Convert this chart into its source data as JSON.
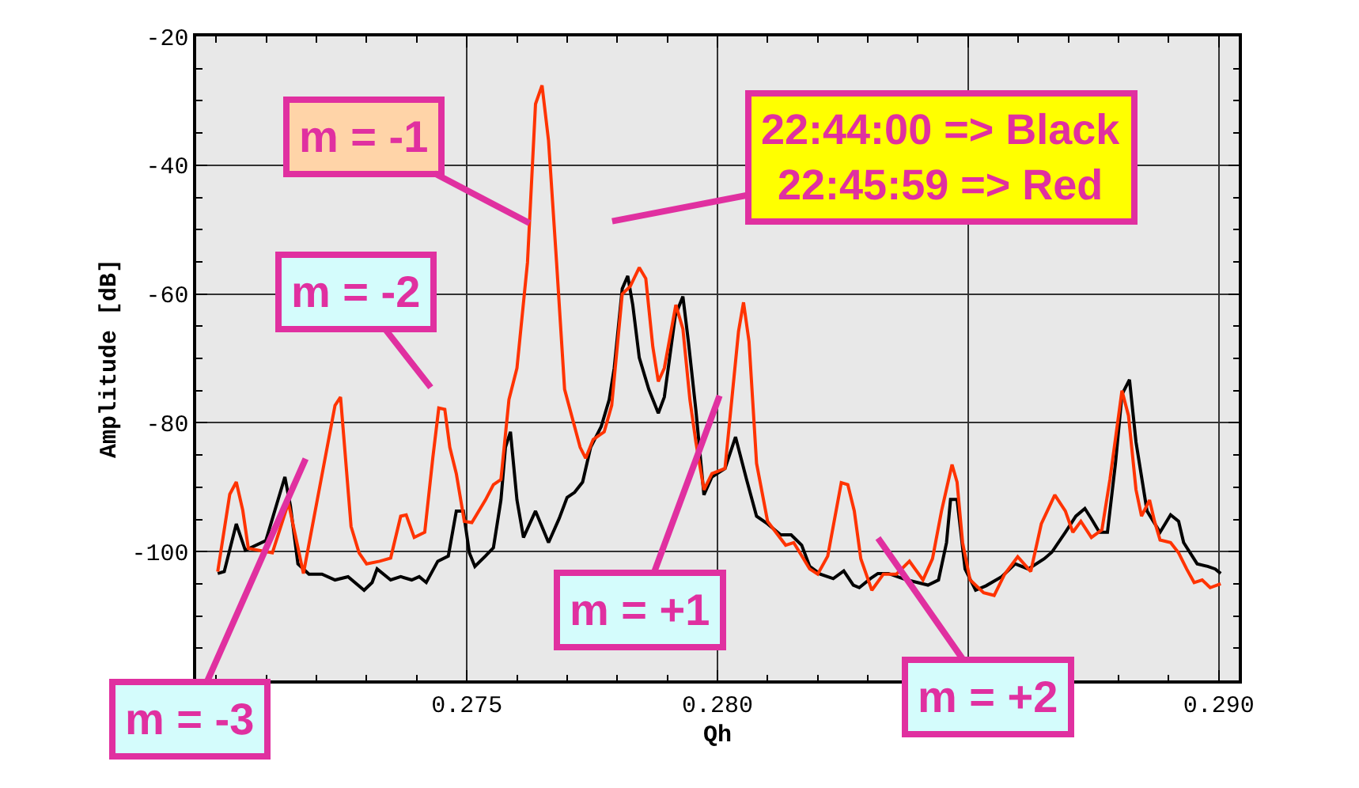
{
  "chart_data": {
    "type": "line",
    "xlabel": "Qh",
    "ylabel": "Amplitude [dB]",
    "xlim": [
      0.2696,
      0.2904
    ],
    "ylim": [
      -120,
      -20
    ],
    "xticks": [
      {
        "value": 0.275,
        "label": "0.275"
      },
      {
        "value": 0.28,
        "label": "0.280"
      },
      {
        "value": 0.285,
        "label": null
      },
      {
        "value": 0.29,
        "label": "0.290"
      }
    ],
    "yticks": [
      -20,
      -40,
      -60,
      -80,
      -100
    ],
    "grid": true,
    "marker": "none",
    "line_style": "solid",
    "series": [
      {
        "color": "#000000",
        "x": [
          0.27003,
          0.27016,
          0.2704,
          0.27058,
          0.27099,
          0.27137,
          0.27148,
          0.27163,
          0.27185,
          0.27211,
          0.27237,
          0.27263,
          0.27295,
          0.27311,
          0.27321,
          0.27348,
          0.27368,
          0.2739,
          0.27405,
          0.27419,
          0.27442,
          0.27463,
          0.27479,
          0.27493,
          0.27505,
          0.27516,
          0.27537,
          0.27553,
          0.27568,
          0.27577,
          0.27587,
          0.276,
          0.27613,
          0.27637,
          0.27663,
          0.27684,
          0.277,
          0.27715,
          0.27731,
          0.27747,
          0.27768,
          0.27784,
          0.27794,
          0.2781,
          0.27821,
          0.27831,
          0.27844,
          0.27863,
          0.27882,
          0.27894,
          0.27916,
          0.27931,
          0.27942,
          0.27957,
          0.27973,
          0.27989,
          0.28015,
          0.28036,
          0.28058,
          0.28078,
          0.281,
          0.28126,
          0.28147,
          0.28168,
          0.28184,
          0.28205,
          0.28231,
          0.28252,
          0.28271,
          0.28283,
          0.28305,
          0.2832,
          0.28341,
          0.28378,
          0.28399,
          0.2842,
          0.28441,
          0.28457,
          0.28465,
          0.28478,
          0.28494,
          0.28515,
          0.28536,
          0.28567,
          0.28594,
          0.2862,
          0.28652,
          0.28667,
          0.28694,
          0.28715,
          0.28733,
          0.28746,
          0.28762,
          0.28778,
          0.28794,
          0.28807,
          0.28822,
          0.28835,
          0.28857,
          0.28883,
          0.28904,
          0.2892,
          0.2893,
          0.28957,
          0.28978,
          0.28993,
          0.29004
        ],
        "values": [
          -103.4,
          -103.1,
          -95.7,
          -99.8,
          -98.3,
          -88.4,
          -92.9,
          -101.9,
          -103.5,
          -103.5,
          -104.4,
          -103.9,
          -106.0,
          -104.8,
          -102.7,
          -104.4,
          -103.9,
          -104.4,
          -103.9,
          -104.8,
          -101.5,
          -100.7,
          -93.7,
          -93.7,
          -100.2,
          -102.3,
          -100.7,
          -99.4,
          -92.0,
          -83.8,
          -81.4,
          -92.0,
          -97.8,
          -93.7,
          -98.6,
          -94.9,
          -91.6,
          -90.8,
          -89.2,
          -83.8,
          -80.6,
          -76.4,
          -71.5,
          -59.2,
          -57.2,
          -61.7,
          -69.9,
          -74.8,
          -78.5,
          -76.0,
          -63.3,
          -60.4,
          -67.4,
          -78.1,
          -91.2,
          -88.4,
          -87.1,
          -82.2,
          -88.8,
          -94.5,
          -95.7,
          -97.4,
          -97.4,
          -99.0,
          -102.3,
          -103.5,
          -104.2,
          -103.0,
          -105.2,
          -105.6,
          -104.2,
          -103.4,
          -103.4,
          -104.4,
          -104.8,
          -105.2,
          -104.4,
          -98.6,
          -91.9,
          -91.9,
          -102.7,
          -106.0,
          -105.3,
          -103.9,
          -101.9,
          -102.7,
          -101.1,
          -100.1,
          -97.0,
          -94.5,
          -93.3,
          -94.9,
          -97.0,
          -97.0,
          -86.3,
          -75.6,
          -73.3,
          -83.0,
          -93.7,
          -97.0,
          -94.3,
          -95.3,
          -98.6,
          -101.9,
          -102.3,
          -102.7,
          -103.4
        ]
      },
      {
        "color": "#ff3300",
        "x": [
          0.27003,
          0.27027,
          0.2704,
          0.27053,
          0.27064,
          0.27112,
          0.27144,
          0.27174,
          0.27237,
          0.27248,
          0.27269,
          0.27285,
          0.273,
          0.27326,
          0.27348,
          0.27368,
          0.27379,
          0.27395,
          0.27416,
          0.27432,
          0.27444,
          0.27456,
          0.27466,
          0.27479,
          0.27495,
          0.2751,
          0.27537,
          0.27553,
          0.27568,
          0.27584,
          0.276,
          0.27621,
          0.27637,
          0.2765,
          0.27663,
          0.27679,
          0.27695,
          0.27726,
          0.27737,
          0.27752,
          0.27774,
          0.27789,
          0.2781,
          0.27826,
          0.27844,
          0.27857,
          0.27871,
          0.27882,
          0.27894,
          0.27917,
          0.27931,
          0.27945,
          0.27957,
          0.27973,
          0.27989,
          0.28015,
          0.28042,
          0.28052,
          0.28063,
          0.28078,
          0.281,
          0.28136,
          0.28152,
          0.28184,
          0.282,
          0.2822,
          0.28247,
          0.2826,
          0.28273,
          0.28286,
          0.28308,
          0.28331,
          0.28357,
          0.28383,
          0.2841,
          0.28429,
          0.28447,
          0.28468,
          0.28478,
          0.28489,
          0.28504,
          0.28531,
          0.28552,
          0.28573,
          0.28599,
          0.28625,
          0.28646,
          0.28673,
          0.28694,
          0.28709,
          0.28725,
          0.28746,
          0.28767,
          0.28783,
          0.28807,
          0.2882,
          0.28835,
          0.28846,
          0.28862,
          0.28872,
          0.28883,
          0.28904,
          0.2892,
          0.28936,
          0.28951,
          0.28967,
          0.28983,
          0.29004
        ],
        "values": [
          -103.1,
          -91.1,
          -89.2,
          -93.6,
          -99.5,
          -100.2,
          -92.4,
          -103.4,
          -77.3,
          -76.0,
          -96.1,
          -100.2,
          -101.9,
          -101.5,
          -101.0,
          -94.5,
          -94.3,
          -97.8,
          -97.0,
          -85.5,
          -77.7,
          -77.9,
          -83.8,
          -87.9,
          -95.3,
          -95.5,
          -92.0,
          -89.6,
          -88.8,
          -76.4,
          -71.5,
          -55.1,
          -30.5,
          -27.6,
          -36.2,
          -55.1,
          -74.8,
          -83.8,
          -85.5,
          -82.6,
          -81.4,
          -77.3,
          -60.0,
          -58.8,
          -55.9,
          -57.6,
          -68.2,
          -73.6,
          -71.5,
          -61.7,
          -65.4,
          -76.4,
          -83.0,
          -90.4,
          -87.9,
          -87.1,
          -65.8,
          -61.3,
          -67.4,
          -86.3,
          -95.3,
          -99.0,
          -98.6,
          -102.7,
          -103.5,
          -100.7,
          -89.3,
          -89.6,
          -93.7,
          -101.1,
          -106.0,
          -103.5,
          -103.5,
          -101.5,
          -104.4,
          -101.1,
          -93.7,
          -86.5,
          -89.2,
          -98.6,
          -104.4,
          -106.4,
          -106.8,
          -103.5,
          -100.8,
          -103.1,
          -95.7,
          -91.2,
          -93.7,
          -97.0,
          -95.3,
          -97.8,
          -96.6,
          -88.8,
          -75.0,
          -78.9,
          -90.4,
          -94.5,
          -92.0,
          -95.3,
          -98.2,
          -98.6,
          -100.2,
          -102.7,
          -104.8,
          -104.4,
          -105.6,
          -105.0
        ]
      }
    ],
    "annotations": [
      {
        "text": "m = -1",
        "x": 0.27625,
        "y": -49
      },
      "22:44:00 => Black\n22:45:59 => Red",
      "m = -2",
      "m = -3",
      "m = +1",
      "m = +2"
    ]
  }
}
